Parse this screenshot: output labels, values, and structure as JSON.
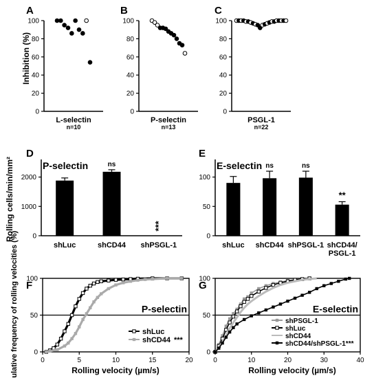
{
  "figure": {
    "y_label_top": "Inhibition (%)",
    "y_label_mid": "Rolling cells/min/mm²",
    "y_label_bottom": "Cumulative frequency of rolling velocities (%)",
    "x_label_bottom": "Rolling velocity (µm/s)"
  },
  "chart_data": [
    {
      "id": "A",
      "type": "scatter",
      "panel_letter": "A",
      "category": "L-selectin",
      "n_label": "n=10",
      "ylim": [
        0,
        100
      ],
      "yticks": [
        0,
        20,
        40,
        60,
        80,
        100
      ],
      "ylabel": "Inhibition (%)",
      "points": [
        {
          "value": 100,
          "filled": true
        },
        {
          "value": 100,
          "filled": true
        },
        {
          "value": 95,
          "filled": true
        },
        {
          "value": 92,
          "filled": true
        },
        {
          "value": 86,
          "filled": true
        },
        {
          "value": 100,
          "filled": true
        },
        {
          "value": 90,
          "filled": true
        },
        {
          "value": 86,
          "filled": true
        },
        {
          "value": 100,
          "filled": false
        },
        {
          "value": 54,
          "filled": true
        }
      ]
    },
    {
      "id": "B",
      "type": "scatter",
      "panel_letter": "B",
      "category": "P-selectin",
      "n_label": "n=13",
      "ylim": [
        0,
        100
      ],
      "yticks": [
        0,
        20,
        40,
        60,
        80,
        100
      ],
      "points": [
        {
          "value": 100,
          "filled": false
        },
        {
          "value": 98,
          "filled": false
        },
        {
          "value": 95,
          "filled": false
        },
        {
          "value": 92,
          "filled": true
        },
        {
          "value": 92,
          "filled": true
        },
        {
          "value": 91,
          "filled": true
        },
        {
          "value": 88,
          "filled": true
        },
        {
          "value": 86,
          "filled": true
        },
        {
          "value": 84,
          "filled": true
        },
        {
          "value": 80,
          "filled": true
        },
        {
          "value": 75,
          "filled": true
        },
        {
          "value": 73,
          "filled": true
        },
        {
          "value": 64,
          "filled": false
        }
      ]
    },
    {
      "id": "C",
      "type": "scatter",
      "panel_letter": "C",
      "category": "PSGL-1",
      "n_label": "n=22",
      "ylim": [
        0,
        100
      ],
      "yticks": [
        0,
        20,
        40,
        60,
        80,
        100
      ],
      "points": [
        {
          "value": 100,
          "filled": false
        },
        {
          "value": 100,
          "filled": true
        },
        {
          "value": 100,
          "filled": false
        },
        {
          "value": 100,
          "filled": true
        },
        {
          "value": 99,
          "filled": false
        },
        {
          "value": 99,
          "filled": true
        },
        {
          "value": 98,
          "filled": false
        },
        {
          "value": 97,
          "filled": true
        },
        {
          "value": 96,
          "filled": false
        },
        {
          "value": 95,
          "filled": true
        },
        {
          "value": 92,
          "filled": true
        },
        {
          "value": 95,
          "filled": false
        },
        {
          "value": 96,
          "filled": true
        },
        {
          "value": 97,
          "filled": false
        },
        {
          "value": 98,
          "filled": true
        },
        {
          "value": 99,
          "filled": false
        },
        {
          "value": 99,
          "filled": true
        },
        {
          "value": 100,
          "filled": false
        },
        {
          "value": 100,
          "filled": true
        },
        {
          "value": 100,
          "filled": false
        },
        {
          "value": 100,
          "filled": true
        },
        {
          "value": 100,
          "filled": false
        }
      ]
    },
    {
      "id": "D",
      "type": "bar",
      "panel_letter": "D",
      "title": "P-selectin",
      "ylabel": "Rolling cells/min/mm²",
      "ylim": [
        0,
        2600
      ],
      "yticks": [
        0,
        1000,
        2000
      ],
      "categories": [
        "shLuc",
        "shCD44",
        "shPSGL-1"
      ],
      "values": [
        1880,
        2180,
        0
      ],
      "errors": [
        90,
        70,
        0
      ],
      "annotations": [
        "",
        "ns",
        "***"
      ]
    },
    {
      "id": "E",
      "type": "bar",
      "panel_letter": "E",
      "title": "E-selectin",
      "ylim": [
        0,
        130
      ],
      "yticks": [
        0,
        50,
        100
      ],
      "categories": [
        "shLuc",
        "shCD44",
        "shPSGL-1",
        "shCD44/\nPSGL-1"
      ],
      "values": [
        90,
        98,
        99,
        53
      ],
      "errors": [
        11,
        12,
        11,
        5
      ],
      "annotations": [
        "",
        "ns",
        "ns",
        "**"
      ]
    },
    {
      "id": "F",
      "type": "line",
      "panel_letter": "F",
      "title": "P-selectin",
      "xlabel": "Rolling velocity (µm/s)",
      "ylabel": "Cumulative frequency of rolling velocities (%)",
      "xlim": [
        0,
        20
      ],
      "ylim": [
        0,
        100
      ],
      "xticks": [
        0,
        5,
        10,
        15,
        20
      ],
      "yticks": [
        0,
        50,
        100
      ],
      "reference_line_y": 50,
      "series": [
        {
          "name": "shLuc",
          "color": "#000000",
          "marker": "open-square",
          "x": [
            0.5,
            1,
            1.5,
            2,
            2.5,
            3,
            3.5,
            4,
            4.5,
            5,
            5.5,
            6,
            6.5,
            7,
            7.5,
            8,
            9,
            10,
            11,
            12,
            13,
            15,
            17,
            19
          ],
          "y": [
            0,
            2,
            5,
            10,
            18,
            28,
            38,
            50,
            62,
            72,
            80,
            86,
            90,
            93,
            95,
            96,
            97,
            98,
            98.5,
            99,
            99.5,
            100,
            100,
            100
          ]
        },
        {
          "name": "shCD44",
          "color": "#aaaaaa",
          "marker": "filled-square",
          "x": [
            0.5,
            1,
            2,
            3,
            3.5,
            4,
            4.5,
            5,
            5.5,
            6,
            6.5,
            7,
            7.5,
            8,
            9,
            10,
            11,
            12,
            13,
            14,
            15,
            17,
            19
          ],
          "y": [
            0,
            1,
            3,
            8,
            12,
            18,
            25,
            34,
            44,
            52,
            60,
            68,
            74,
            79,
            86,
            91,
            94,
            96,
            97.5,
            98.5,
            99,
            100,
            100
          ]
        }
      ],
      "legend_suffix": "***"
    },
    {
      "id": "G",
      "type": "line",
      "panel_letter": "G",
      "title": "E-selectin",
      "xlabel": "Rolling velocity (µm/s)",
      "xlim": [
        0,
        40
      ],
      "ylim": [
        0,
        100
      ],
      "xticks": [
        0,
        10,
        20,
        30,
        40
      ],
      "yticks": [
        0,
        50,
        100
      ],
      "reference_line_y": 50,
      "series": [
        {
          "name": "shPSGL-1",
          "color": "#999999",
          "marker": "filled-square",
          "x": [
            0,
            1,
            2,
            3,
            4,
            5,
            6,
            7,
            8,
            9,
            10,
            12,
            14,
            16,
            18,
            20,
            22,
            24,
            26
          ],
          "y": [
            0,
            10,
            22,
            35,
            45,
            52,
            58,
            65,
            72,
            75,
            80,
            86,
            90,
            93,
            95,
            97,
            98,
            99,
            100
          ]
        },
        {
          "name": "shLuc",
          "color": "#000000",
          "marker": "open-square",
          "x": [
            0,
            1,
            2,
            3,
            4,
            5,
            6,
            7,
            8,
            9,
            10,
            12,
            14,
            16,
            18,
            20,
            22,
            24,
            26
          ],
          "y": [
            0,
            8,
            18,
            30,
            40,
            48,
            55,
            62,
            68,
            72,
            76,
            82,
            87,
            91,
            94,
            96,
            98,
            99,
            100
          ]
        },
        {
          "name": "shCD44",
          "color": "#bbbbbb",
          "marker": "line",
          "x": [
            0,
            1,
            2,
            3,
            4,
            5,
            6,
            7,
            8,
            9,
            10,
            12,
            14,
            16,
            18,
            20,
            22,
            24,
            26,
            28
          ],
          "y": [
            0,
            6,
            14,
            22,
            32,
            40,
            47,
            54,
            60,
            65,
            69,
            76,
            82,
            87,
            91,
            94,
            96,
            98,
            99,
            100
          ]
        },
        {
          "name": "shCD44/shPSGL-1***",
          "color": "#000000",
          "marker": "filled-square",
          "x": [
            0,
            1,
            2,
            3,
            4,
            5,
            6,
            8,
            10,
            12,
            14,
            16,
            18,
            20,
            22,
            24,
            26,
            28,
            30,
            32,
            34,
            36,
            37
          ],
          "y": [
            0,
            5,
            12,
            20,
            27,
            33,
            38,
            44,
            49,
            53,
            57,
            61,
            65,
            69,
            73,
            77,
            81,
            86,
            90,
            93,
            96,
            99,
            100
          ]
        }
      ]
    }
  ]
}
